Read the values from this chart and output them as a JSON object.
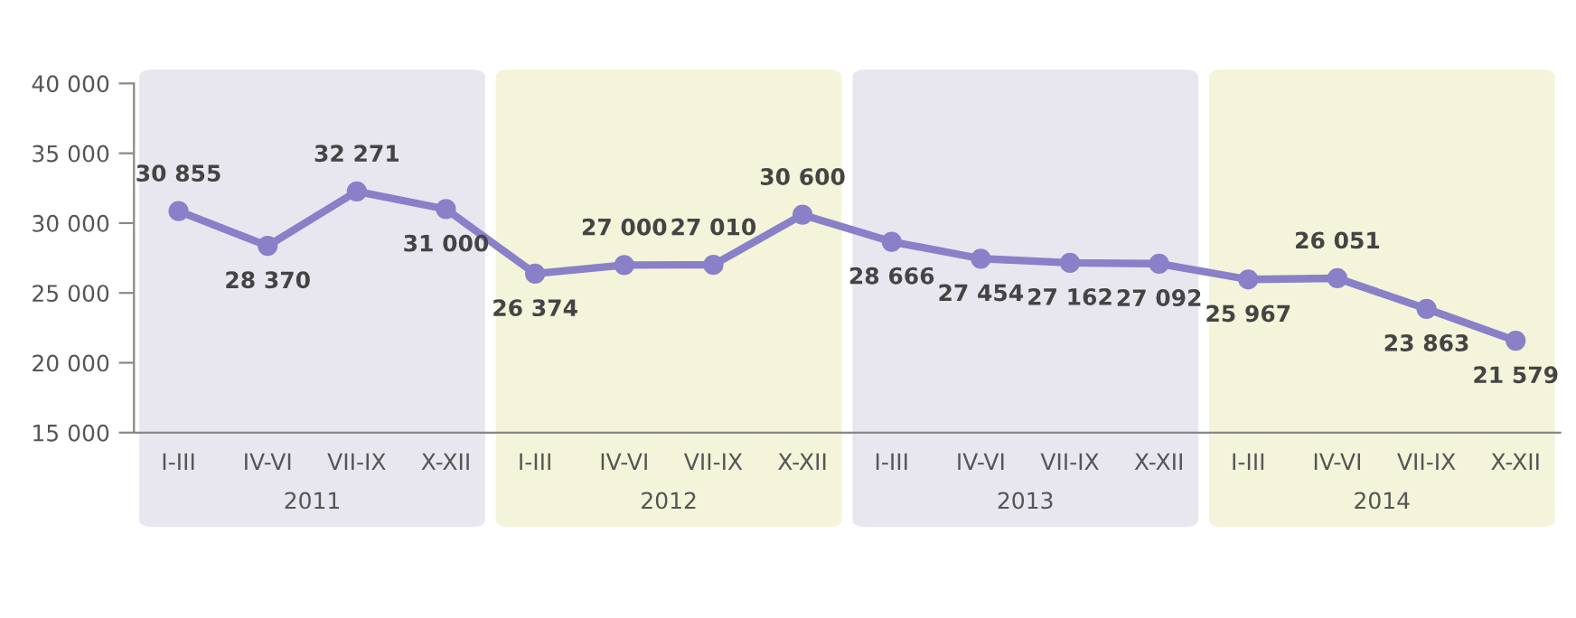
{
  "chart_data": {
    "type": "line",
    "categories": [
      "I-III",
      "IV-VI",
      "VII-IX",
      "X-XII",
      "I-III",
      "IV-VI",
      "VII-IX",
      "X-XII",
      "I-III",
      "IV-VI",
      "VII-IX",
      "X-XII",
      "I-III",
      "IV-VI",
      "VII-IX",
      "X-XII"
    ],
    "series": [
      {
        "color": "#8a80c8",
        "values": [
          30855,
          28370,
          32271,
          31000,
          26374,
          27000,
          27010,
          30600,
          28666,
          27454,
          27162,
          27092,
          25967,
          26051,
          23863,
          21579
        ],
        "value_labels": [
          "30 855",
          "28 370",
          "32 271",
          "31 000",
          "26 374",
          "27 000",
          "27 010",
          "30 600",
          "28 666",
          "27 454",
          "27 162",
          "27 092",
          "25 967",
          "26 051",
          "23 863",
          "21 579"
        ]
      }
    ],
    "ylim": [
      15000,
      40000
    ],
    "yticks": [
      {
        "value": 15000,
        "label": "15 000"
      },
      {
        "value": 20000,
        "label": "20 000"
      },
      {
        "value": 25000,
        "label": "25 000"
      },
      {
        "value": 30000,
        "label": "30 000"
      },
      {
        "value": 35000,
        "label": "35 000"
      },
      {
        "value": 40000,
        "label": "40 000"
      }
    ],
    "annotations": [
      "2011",
      "2012",
      "2013",
      "2014"
    ],
    "marker": "circle",
    "line_style": "solid",
    "grid": false,
    "legend": false
  }
}
